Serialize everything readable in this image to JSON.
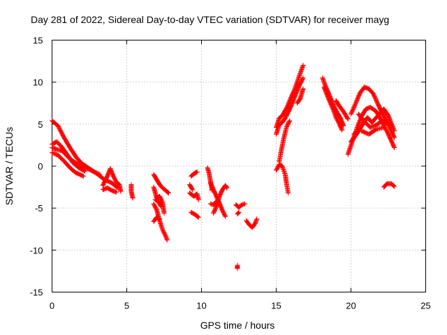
{
  "chart_data": {
    "type": "scatter",
    "title": "Day 281 of 2022, Sidereal Day-to-day VTEC variation (SDTVAR) for receiver mayg",
    "xlabel": "GPS time / hours",
    "ylabel": "SDTVAR / TECUs",
    "xlim": [
      0,
      25
    ],
    "ylim": [
      -15,
      15
    ],
    "xticks": [
      "0",
      "5",
      "10",
      "15",
      "20",
      "25"
    ],
    "yticks": [
      "-15",
      "-10",
      "-5",
      "0",
      "5",
      "10",
      "15"
    ],
    "grid": true,
    "marker": "+",
    "series": [
      {
        "name": "SDTVAR",
        "color": "#ff0000",
        "segments": [
          [
            [
              0.0,
              5.4
            ],
            [
              0.4,
              4.8
            ],
            [
              0.8,
              3.4
            ],
            [
              1.2,
              2.2
            ],
            [
              1.6,
              1.1
            ],
            [
              2.0,
              0.3
            ],
            [
              2.5,
              -0.3
            ],
            [
              3.0,
              -0.9
            ],
            [
              3.5,
              -1.6
            ],
            [
              4.0,
              -2.0
            ],
            [
              4.4,
              -2.6
            ]
          ],
          [
            [
              0.0,
              2.6
            ],
            [
              0.3,
              2.9
            ],
            [
              0.6,
              2.4
            ],
            [
              1.0,
              1.4
            ],
            [
              1.4,
              0.4
            ],
            [
              1.8,
              -0.2
            ],
            [
              2.2,
              -0.6
            ]
          ],
          [
            [
              0.0,
              1.6
            ],
            [
              0.4,
              1.3
            ],
            [
              0.8,
              0.6
            ],
            [
              1.2,
              -0.2
            ],
            [
              1.6,
              -0.8
            ],
            [
              2.1,
              -1.2
            ]
          ],
          [
            [
              0.0,
              2.2
            ],
            [
              0.3,
              2.0
            ],
            [
              0.7,
              1.8
            ],
            [
              1.0,
              1.2
            ],
            [
              1.4,
              0.6
            ],
            [
              2.0,
              0.0
            ],
            [
              2.6,
              -0.5
            ],
            [
              3.2,
              -1.0
            ]
          ],
          [
            [
              3.4,
              -2.3
            ],
            [
              3.7,
              -1.2
            ],
            [
              3.9,
              -0.3
            ],
            [
              4.1,
              -1.2
            ],
            [
              4.3,
              -1.9
            ],
            [
              4.5,
              -2.2
            ],
            [
              4.6,
              -3.0
            ]
          ],
          [
            [
              3.4,
              -2.8
            ],
            [
              3.7,
              -2.6
            ],
            [
              4.0,
              -2.9
            ],
            [
              4.3,
              -3.1
            ]
          ],
          [
            [
              5.3,
              -2.2
            ],
            [
              5.3,
              -3.0
            ],
            [
              5.4,
              -3.8
            ]
          ],
          [
            [
              6.8,
              -1.0
            ],
            [
              7.0,
              -1.6
            ],
            [
              7.2,
              -2.2
            ],
            [
              7.4,
              -2.6
            ],
            [
              7.6,
              -2.9
            ],
            [
              7.8,
              -3.2
            ]
          ],
          [
            [
              6.8,
              -2.5
            ],
            [
              7.0,
              -3.8
            ],
            [
              7.2,
              -3.6
            ],
            [
              7.4,
              -4.4
            ],
            [
              7.5,
              -5.6
            ]
          ],
          [
            [
              6.8,
              -4.5
            ],
            [
              7.0,
              -5.2
            ],
            [
              7.2,
              -6.5
            ],
            [
              7.4,
              -7.6
            ],
            [
              7.6,
              -8.3
            ],
            [
              7.7,
              -8.8
            ]
          ],
          [
            [
              6.9,
              -4.0
            ],
            [
              7.1,
              -4.2
            ],
            [
              7.3,
              -4.8
            ]
          ],
          [
            [
              6.8,
              -6.6
            ],
            [
              7.0,
              -6.1
            ],
            [
              7.2,
              -6.3
            ]
          ],
          [
            [
              9.3,
              -1.2
            ],
            [
              9.5,
              -0.9
            ],
            [
              9.7,
              -0.7
            ]
          ],
          [
            [
              9.2,
              -3.2
            ],
            [
              9.5,
              -3.6
            ],
            [
              9.7,
              -3.3
            ],
            [
              9.8,
              -4.0
            ]
          ],
          [
            [
              9.2,
              -2.2
            ],
            [
              9.4,
              -2.8
            ]
          ],
          [
            [
              9.3,
              -5.5
            ],
            [
              9.6,
              -5.8
            ],
            [
              9.8,
              -6.1
            ]
          ],
          [
            [
              10.4,
              -0.2
            ],
            [
              10.5,
              -0.8
            ],
            [
              10.6,
              -1.8
            ],
            [
              10.7,
              -2.9
            ]
          ],
          [
            [
              10.6,
              -2.0
            ],
            [
              10.8,
              -2.8
            ],
            [
              11.0,
              -3.6
            ],
            [
              11.2,
              -4.4
            ],
            [
              11.4,
              -5.3
            ],
            [
              11.6,
              -6.0
            ]
          ],
          [
            [
              10.8,
              -5.6
            ],
            [
              11.0,
              -4.8
            ],
            [
              11.2,
              -3.6
            ],
            [
              11.4,
              -2.8
            ],
            [
              11.6,
              -2.3
            ],
            [
              11.7,
              -2.6
            ]
          ],
          [
            [
              10.6,
              -4.5
            ],
            [
              10.8,
              -4.6
            ],
            [
              11.0,
              -4.2
            ]
          ],
          [
            [
              12.3,
              -4.6
            ],
            [
              12.5,
              -4.9
            ],
            [
              12.7,
              -4.6
            ],
            [
              12.9,
              -4.5
            ]
          ],
          [
            [
              12.4,
              -5.7
            ],
            [
              12.5,
              -5.5
            ]
          ],
          [
            [
              12.4,
              -11.8
            ],
            [
              12.4,
              -12.2
            ]
          ],
          [
            [
              13.0,
              -6.5
            ],
            [
              13.2,
              -7.0
            ],
            [
              13.4,
              -7.3
            ],
            [
              13.6,
              -6.8
            ],
            [
              13.7,
              -6.3
            ]
          ],
          [
            [
              15.0,
              4.6
            ],
            [
              15.2,
              5.7
            ],
            [
              15.4,
              6.0
            ],
            [
              15.6,
              6.6
            ],
            [
              15.8,
              7.3
            ],
            [
              16.0,
              8.2
            ],
            [
              16.2,
              9.0
            ],
            [
              16.4,
              10.0
            ],
            [
              16.6,
              11.0
            ],
            [
              16.8,
              12.0
            ]
          ],
          [
            [
              15.0,
              3.8
            ],
            [
              15.2,
              4.9
            ],
            [
              15.4,
              5.2
            ],
            [
              15.6,
              5.7
            ],
            [
              15.8,
              6.4
            ],
            [
              16.0,
              7.2
            ],
            [
              16.2,
              8.1
            ],
            [
              16.4,
              9.0
            ],
            [
              16.6,
              9.8
            ],
            [
              16.8,
              10.5
            ]
          ],
          [
            [
              15.2,
              0.5
            ],
            [
              15.3,
              1.5
            ],
            [
              15.4,
              2.4
            ],
            [
              15.5,
              3.3
            ],
            [
              15.7,
              4.7
            ],
            [
              15.9,
              5.4
            ]
          ],
          [
            [
              15.0,
              -0.5
            ],
            [
              15.2,
              0.2
            ],
            [
              15.4,
              0.0
            ],
            [
              15.6,
              -1.0
            ],
            [
              15.7,
              -2.2
            ],
            [
              15.8,
              -3.2
            ]
          ],
          [
            [
              16.4,
              7.5
            ],
            [
              16.6,
              8.0
            ],
            [
              16.8,
              9.2
            ]
          ],
          [
            [
              18.1,
              10.5
            ],
            [
              18.3,
              9.5
            ],
            [
              18.5,
              8.7
            ],
            [
              18.7,
              7.8
            ],
            [
              18.9,
              7.0
            ],
            [
              19.1,
              6.3
            ],
            [
              19.3,
              5.7
            ],
            [
              19.5,
              4.8
            ]
          ],
          [
            [
              18.2,
              9.4
            ],
            [
              18.4,
              8.5
            ],
            [
              18.6,
              7.6
            ],
            [
              18.8,
              6.8
            ],
            [
              19.0,
              5.8
            ],
            [
              19.2,
              5.1
            ],
            [
              19.4,
              4.3
            ]
          ],
          [
            [
              19.0,
              7.8
            ],
            [
              19.2,
              7.2
            ],
            [
              19.5,
              6.5
            ],
            [
              19.8,
              5.6
            ]
          ],
          [
            [
              19.8,
              1.4
            ],
            [
              20.1,
              3.0
            ],
            [
              20.4,
              4.5
            ],
            [
              20.7,
              5.9
            ],
            [
              21.0,
              6.8
            ],
            [
              21.3,
              7.0
            ],
            [
              21.7,
              6.5
            ],
            [
              22.1,
              5.2
            ],
            [
              22.5,
              3.8
            ],
            [
              22.9,
              2.2
            ]
          ],
          [
            [
              20.0,
              6.2
            ],
            [
              20.3,
              7.4
            ],
            [
              20.6,
              8.7
            ],
            [
              20.9,
              9.4
            ],
            [
              21.2,
              9.2
            ],
            [
              21.5,
              8.6
            ],
            [
              21.8,
              7.4
            ],
            [
              22.1,
              6.3
            ],
            [
              22.5,
              5.0
            ],
            [
              22.9,
              3.4
            ]
          ],
          [
            [
              20.2,
              3.8
            ],
            [
              20.5,
              4.2
            ],
            [
              20.8,
              5.0
            ],
            [
              21.1,
              5.8
            ],
            [
              21.4,
              5.2
            ],
            [
              21.8,
              6.0
            ],
            [
              22.2,
              6.8
            ],
            [
              22.5,
              6.0
            ],
            [
              22.9,
              4.2
            ]
          ],
          [
            [
              20.5,
              6.2
            ],
            [
              20.9,
              5.3
            ],
            [
              21.3,
              4.6
            ],
            [
              21.7,
              4.9
            ],
            [
              22.1,
              5.4
            ],
            [
              22.5,
              5.0
            ]
          ],
          [
            [
              20.7,
              4.2
            ],
            [
              21.2,
              3.8
            ],
            [
              21.7,
              4.4
            ],
            [
              22.2,
              4.6
            ]
          ],
          [
            [
              20.0,
              2.9
            ],
            [
              20.3,
              3.6
            ],
            [
              20.6,
              4.4
            ]
          ],
          [
            [
              22.2,
              -2.5
            ],
            [
              22.4,
              -2.1
            ],
            [
              22.7,
              -2.1
            ],
            [
              22.9,
              -2.4
            ]
          ]
        ]
      }
    ]
  }
}
